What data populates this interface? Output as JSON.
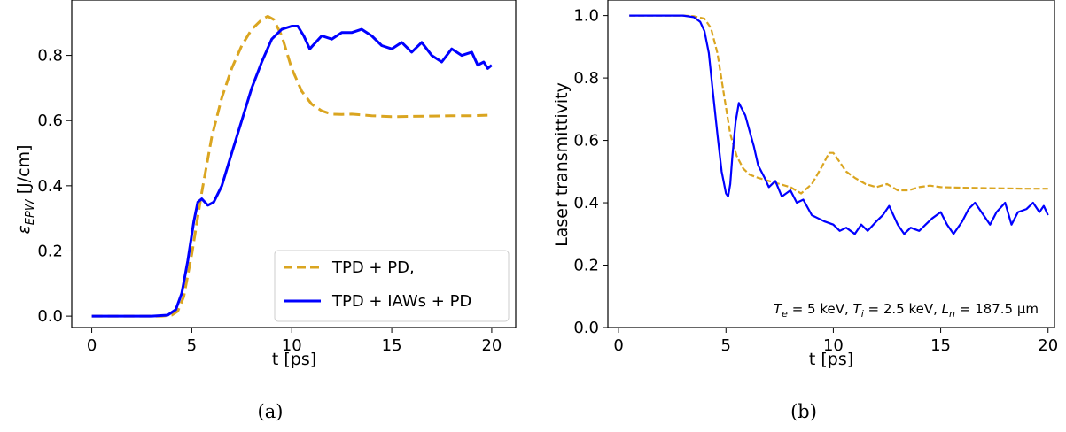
{
  "chart_data": [
    {
      "type": "line",
      "panel_caption": "(a)",
      "xlabel": "t [ps]",
      "ylabel_prefix": "ε",
      "ylabel_sub": "EPW",
      "ylabel_unit": " [J/cm]",
      "xlim": [
        -1,
        21.2
      ],
      "ylim": [
        -0.035,
        0.97
      ],
      "xticks": [
        0,
        5,
        10,
        15,
        20
      ],
      "yticks": [
        0.0,
        0.2,
        0.4,
        0.6,
        0.8
      ],
      "xtick_labels": [
        "0",
        "5",
        "10",
        "15",
        "20"
      ],
      "ytick_labels": [
        "0.0",
        "0.2",
        "0.4",
        "0.6",
        "0.8"
      ],
      "grid": false,
      "legend_position": "lower-right",
      "series": [
        {
          "name": "TPD + PD,",
          "color": "#DAA520",
          "style": "dashed",
          "x": [
            0,
            1,
            2,
            3,
            3.5,
            4,
            4.3,
            4.6,
            5,
            5.5,
            6,
            6.5,
            7,
            7.5,
            8,
            8.5,
            8.8,
            9.1,
            9.5,
            10,
            10.5,
            11,
            11.5,
            12,
            12.5,
            13,
            14,
            15,
            16,
            17,
            18,
            19,
            20
          ],
          "y": [
            0,
            0,
            0,
            0,
            0,
            0.003,
            0.015,
            0.06,
            0.19,
            0.38,
            0.55,
            0.67,
            0.76,
            0.83,
            0.88,
            0.91,
            0.92,
            0.91,
            0.86,
            0.76,
            0.69,
            0.65,
            0.63,
            0.62,
            0.619,
            0.62,
            0.615,
            0.612,
            0.613,
            0.614,
            0.615,
            0.615,
            0.617
          ]
        },
        {
          "name": "TPD + IAWs + PD",
          "color": "#0000FF",
          "style": "solid",
          "x": [
            0,
            1,
            2,
            3,
            3.8,
            4.2,
            4.5,
            4.8,
            5.1,
            5.3,
            5.5,
            5.8,
            6.1,
            6.5,
            7,
            7.5,
            8,
            8.5,
            9,
            9.5,
            10,
            10.3,
            10.6,
            10.9,
            11.2,
            11.5,
            12,
            12.5,
            13,
            13.5,
            14,
            14.5,
            15,
            15.5,
            16,
            16.5,
            17,
            17.5,
            18,
            18.5,
            19,
            19.3,
            19.6,
            19.8,
            20
          ],
          "y": [
            0,
            0,
            0,
            0,
            0.003,
            0.02,
            0.07,
            0.17,
            0.29,
            0.35,
            0.36,
            0.34,
            0.35,
            0.4,
            0.5,
            0.6,
            0.7,
            0.78,
            0.85,
            0.88,
            0.89,
            0.89,
            0.86,
            0.82,
            0.84,
            0.86,
            0.85,
            0.87,
            0.87,
            0.88,
            0.86,
            0.83,
            0.82,
            0.84,
            0.81,
            0.84,
            0.8,
            0.78,
            0.82,
            0.8,
            0.81,
            0.77,
            0.78,
            0.76,
            0.77
          ]
        }
      ]
    },
    {
      "type": "line",
      "panel_caption": "(b)",
      "xlabel": "t [ps]",
      "ylabel": "Laser transmittivity",
      "xlim": [
        -0.5,
        20.3
      ],
      "ylim": [
        0.0,
        1.05
      ],
      "xticks": [
        0,
        5,
        10,
        15,
        20
      ],
      "yticks": [
        0.0,
        0.2,
        0.4,
        0.6,
        0.8,
        1.0
      ],
      "xtick_labels": [
        "0",
        "5",
        "10",
        "15",
        "20"
      ],
      "ytick_labels": [
        "0.0",
        "0.2",
        "0.4",
        "0.6",
        "0.8",
        "1.0"
      ],
      "grid": false,
      "annotation": "Te = 5 keV, Ti = 2.5 keV, Ln = 187.5 μm",
      "series": [
        {
          "color": "#DAA520",
          "style": "dashed",
          "x": [
            0.5,
            1,
            2,
            3,
            3.5,
            4,
            4.3,
            4.6,
            4.9,
            5.2,
            5.5,
            5.8,
            6.1,
            6.5,
            7,
            7.5,
            8,
            8.5,
            9,
            9.5,
            9.8,
            10,
            10.3,
            10.6,
            11,
            11.5,
            12,
            12.5,
            13,
            13.5,
            14,
            14.5,
            15,
            16,
            17,
            18,
            19,
            20
          ],
          "y": [
            1.0,
            1.0,
            1.0,
            1.0,
            0.998,
            0.99,
            0.96,
            0.88,
            0.75,
            0.62,
            0.55,
            0.51,
            0.49,
            0.48,
            0.47,
            0.46,
            0.45,
            0.43,
            0.46,
            0.52,
            0.56,
            0.56,
            0.53,
            0.5,
            0.48,
            0.46,
            0.45,
            0.46,
            0.44,
            0.44,
            0.45,
            0.455,
            0.45,
            0.448,
            0.447,
            0.446,
            0.445,
            0.445
          ]
        },
        {
          "color": "#0000FF",
          "style": "solid",
          "x": [
            0.5,
            1,
            2,
            3,
            3.5,
            3.8,
            4,
            4.2,
            4.4,
            4.6,
            4.8,
            5.0,
            5.1,
            5.2,
            5.3,
            5.45,
            5.6,
            5.75,
            5.9,
            6.1,
            6.3,
            6.5,
            6.8,
            7,
            7.3,
            7.6,
            8,
            8.3,
            8.6,
            9,
            9.3,
            9.6,
            10,
            10.3,
            10.6,
            11,
            11.3,
            11.6,
            12,
            12.3,
            12.6,
            13,
            13.3,
            13.6,
            14,
            14.3,
            14.6,
            15,
            15.3,
            15.6,
            16,
            16.3,
            16.6,
            17,
            17.3,
            17.6,
            18,
            18.3,
            18.6,
            19,
            19.3,
            19.6,
            19.8,
            20
          ],
          "y": [
            1.0,
            1.0,
            1.0,
            1.0,
            0.995,
            0.98,
            0.95,
            0.88,
            0.75,
            0.62,
            0.5,
            0.43,
            0.42,
            0.46,
            0.55,
            0.66,
            0.72,
            0.7,
            0.68,
            0.63,
            0.58,
            0.52,
            0.48,
            0.45,
            0.47,
            0.42,
            0.44,
            0.4,
            0.41,
            0.36,
            0.35,
            0.34,
            0.33,
            0.31,
            0.32,
            0.3,
            0.33,
            0.31,
            0.34,
            0.36,
            0.39,
            0.33,
            0.3,
            0.32,
            0.31,
            0.33,
            0.35,
            0.37,
            0.33,
            0.3,
            0.34,
            0.38,
            0.4,
            0.36,
            0.33,
            0.37,
            0.4,
            0.33,
            0.37,
            0.38,
            0.4,
            0.37,
            0.39,
            0.36
          ]
        }
      ]
    }
  ]
}
